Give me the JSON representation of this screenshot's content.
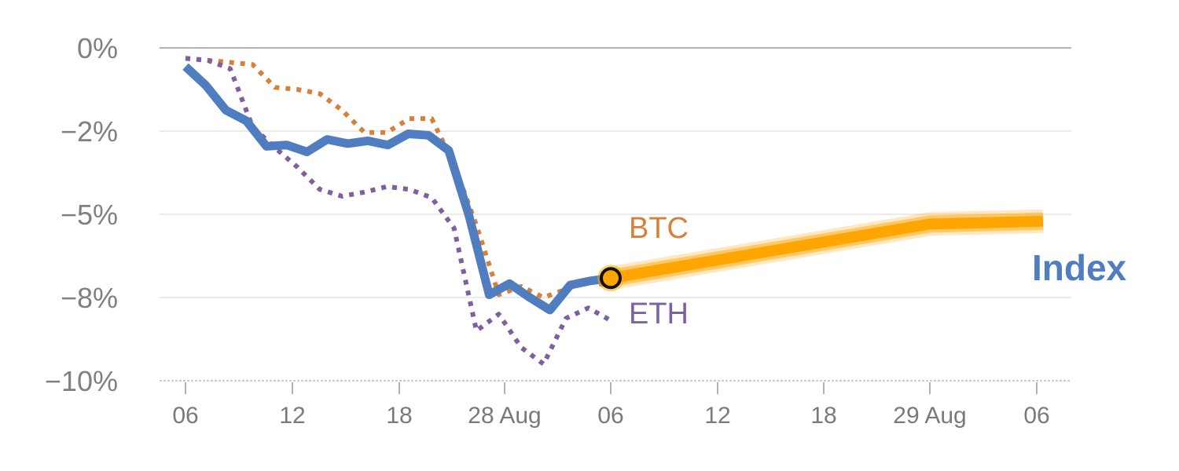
{
  "chart_data": {
    "type": "line",
    "y_tick_labels": [
      "0%",
      "−2%",
      "−5%",
      "−8%",
      "−10%"
    ],
    "x_tick_labels": [
      "06",
      "12",
      "18",
      "28 Aug",
      "06",
      "12",
      "18",
      "29 Aug",
      "06"
    ],
    "ylim_labels": [
      "0%",
      "−10%"
    ],
    "grid": true,
    "series": [
      {
        "name": "BTC",
        "style": "dotted",
        "color": "#d6813a",
        "values": [
          -0.25,
          -0.3,
          -0.35,
          -0.4,
          -0.95,
          -1.0,
          -1.1,
          -1.5,
          -2.05,
          -2.05,
          -1.7,
          -1.7,
          -3.2,
          -5.4,
          -7.9,
          -7.6,
          -8.0,
          -7.7,
          -7.4,
          -7.6
        ]
      },
      {
        "name": "ETH",
        "style": "dotted",
        "color": "#7e5fa0",
        "values": [
          -0.25,
          -0.3,
          -0.5,
          -1.9,
          -2.6,
          -3.3,
          -4.1,
          -4.35,
          -4.2,
          -4.0,
          -4.1,
          -4.4,
          -5.5,
          -8.8,
          -8.4,
          -9.2,
          -9.6,
          -8.5,
          -8.25,
          -8.55
        ]
      },
      {
        "name": "Index",
        "style": "solid",
        "color": "#4f7dc0",
        "values": [
          -0.45,
          -0.9,
          -1.5,
          -1.75,
          -2.55,
          -2.5,
          -2.75,
          -2.3,
          -2.45,
          -2.35,
          -2.5,
          -2.1,
          -2.15,
          -2.7,
          -5.05,
          -7.9,
          -7.5,
          -8.0,
          -8.3,
          -7.55,
          -7.4,
          -7.3
        ]
      },
      {
        "name": "",
        "style": "forecast",
        "color": "#ffa500",
        "values": [
          -7.3,
          -5.35,
          -5.25
        ]
      }
    ],
    "colors": {
      "btc": "#d6813a",
      "eth": "#7e5fa0",
      "index": "#4f7dc0",
      "forecast": "#ffa500",
      "grid": "#e4e4e4",
      "axis": "#cccccc",
      "zero_line": "#999999"
    }
  },
  "labels": {
    "btc": "BTC",
    "eth": "ETH",
    "index": "Index"
  }
}
